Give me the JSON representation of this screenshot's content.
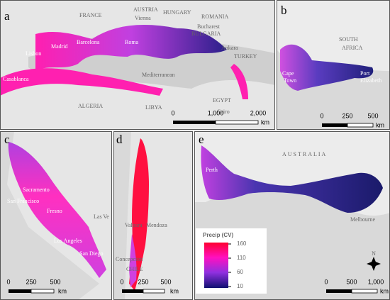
{
  "panels": [
    {
      "letter": "a",
      "places": [
        "FRANCE",
        "AUSTRIA",
        "HUNGARY",
        "ROMANIA",
        "Vienna",
        "Bucharest",
        "BULGARIA",
        "Madrid",
        "Barcelona",
        "Lisbon",
        "Roma",
        "Ankara",
        "TURKEY",
        "Casablanca",
        "ALGERIA",
        "LIBYA",
        "EGYPT",
        "Cairo",
        "Mediterranean"
      ],
      "scale": [
        "0",
        "1,000",
        "2,000",
        "km"
      ]
    },
    {
      "letter": "b",
      "places": [
        "SOUTH",
        "AFRICA",
        "Cape",
        "Town",
        "Port",
        "Elizabeth"
      ],
      "scale": [
        "0",
        "250",
        "500",
        "km"
      ]
    },
    {
      "letter": "c",
      "places": [
        "Sacramento",
        "San Francisco",
        "Fresno",
        "Las Ve",
        "Los Angeles",
        "San Diego"
      ],
      "scale": [
        "0",
        "250",
        "500",
        "km"
      ]
    },
    {
      "letter": "d",
      "places": [
        "Valpara",
        "Mendoza",
        "Concepcion",
        "CHILE"
      ],
      "scale": [
        "0",
        "250",
        "500",
        "km"
      ]
    },
    {
      "letter": "e",
      "places": [
        "AUSTRALIA",
        "Perth",
        "Melbourne",
        "N"
      ],
      "scale": [
        "0",
        "500",
        "1,000",
        "km"
      ]
    }
  ],
  "legend": {
    "title": "Precip (CV)",
    "ticks": [
      160,
      110,
      60,
      10
    ],
    "range": [
      10,
      160
    ]
  }
}
